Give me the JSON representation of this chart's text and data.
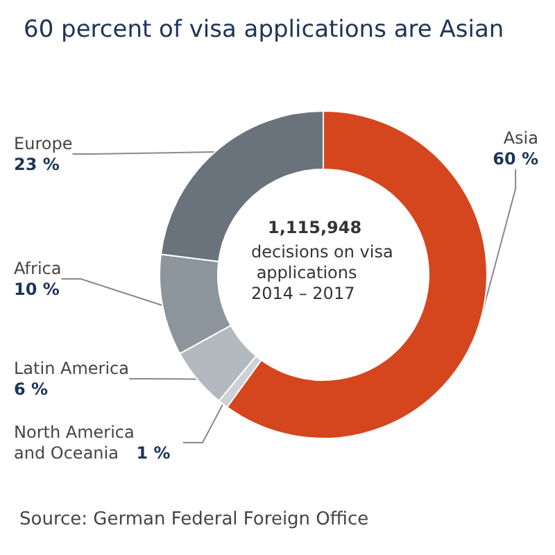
{
  "chart_data": {
    "type": "donut",
    "title": "60 percent of visa applications are Asian",
    "categories": [
      "Asia",
      "North America and Oceania",
      "Latin America",
      "Africa",
      "Europe"
    ],
    "values": [
      60,
      1,
      6,
      10,
      23
    ],
    "colors": [
      "#d5461f",
      "#cdd1d5",
      "#b3b9bf",
      "#8c949c",
      "#6a737b"
    ],
    "value_labels": [
      "60 %",
      "1 %",
      "6 %",
      "10 %",
      "23 %"
    ],
    "annotations": [
      "1,115,948",
      "decisions on visa applications 2014 – 2017",
      "Source: German Federal Foreign Office"
    ]
  }
}
